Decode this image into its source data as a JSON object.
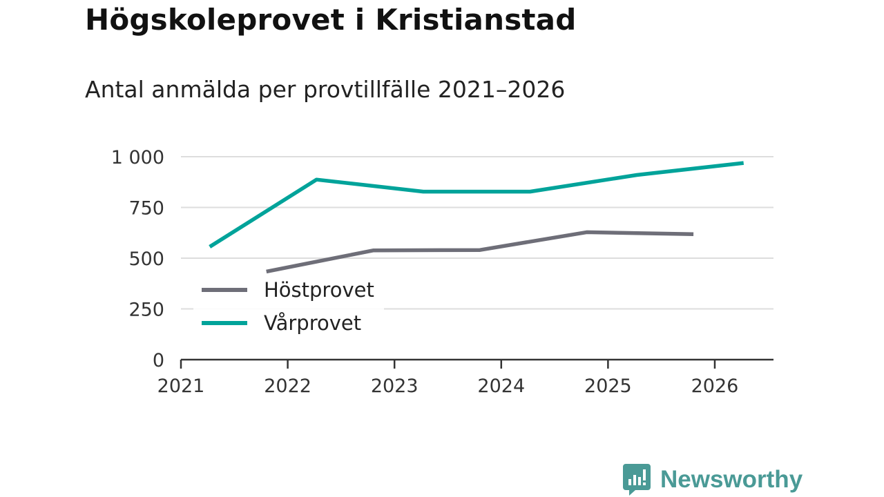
{
  "header": {
    "title": "Högskoleprovet i Kristianstad",
    "subtitle": "Antal anmälda per provtillfälle 2021–2026"
  },
  "chart_data": {
    "type": "line",
    "title": "Högskoleprovet i Kristianstad",
    "subtitle": "Antal anmälda per provtillfälle 2021–2026",
    "xlabel": "",
    "ylabel": "",
    "xlim": [
      2021,
      2026.55
    ],
    "ylim": [
      0,
      1000
    ],
    "grid": true,
    "legend_position": "bottom-left",
    "x_ticks": [
      2021,
      2022,
      2023,
      2024,
      2025,
      2026
    ],
    "x_tick_labels": [
      "2021",
      "2022",
      "2023",
      "2024",
      "2025",
      "2026"
    ],
    "y_ticks": [
      0,
      250,
      500,
      750,
      1000
    ],
    "y_tick_labels": [
      "0",
      "250",
      "500",
      "750",
      "1 000"
    ],
    "series": [
      {
        "name": "Höstprovet",
        "color": "#6e6e78",
        "x": [
          2021.8,
          2022.8,
          2023.8,
          2024.8,
          2025.8
        ],
        "values": [
          434,
          538,
          540,
          628,
          618
        ]
      },
      {
        "name": "Vårprovet",
        "color": "#00a39a",
        "x": [
          2021.27,
          2022.27,
          2023.27,
          2024.27,
          2025.27,
          2026.27
        ],
        "values": [
          556,
          887,
          828,
          828,
          910,
          969
        ]
      }
    ]
  },
  "brand": {
    "name": "Newsworthy",
    "color": "#4a9a96",
    "icon": "newsworthy-logo-icon"
  }
}
